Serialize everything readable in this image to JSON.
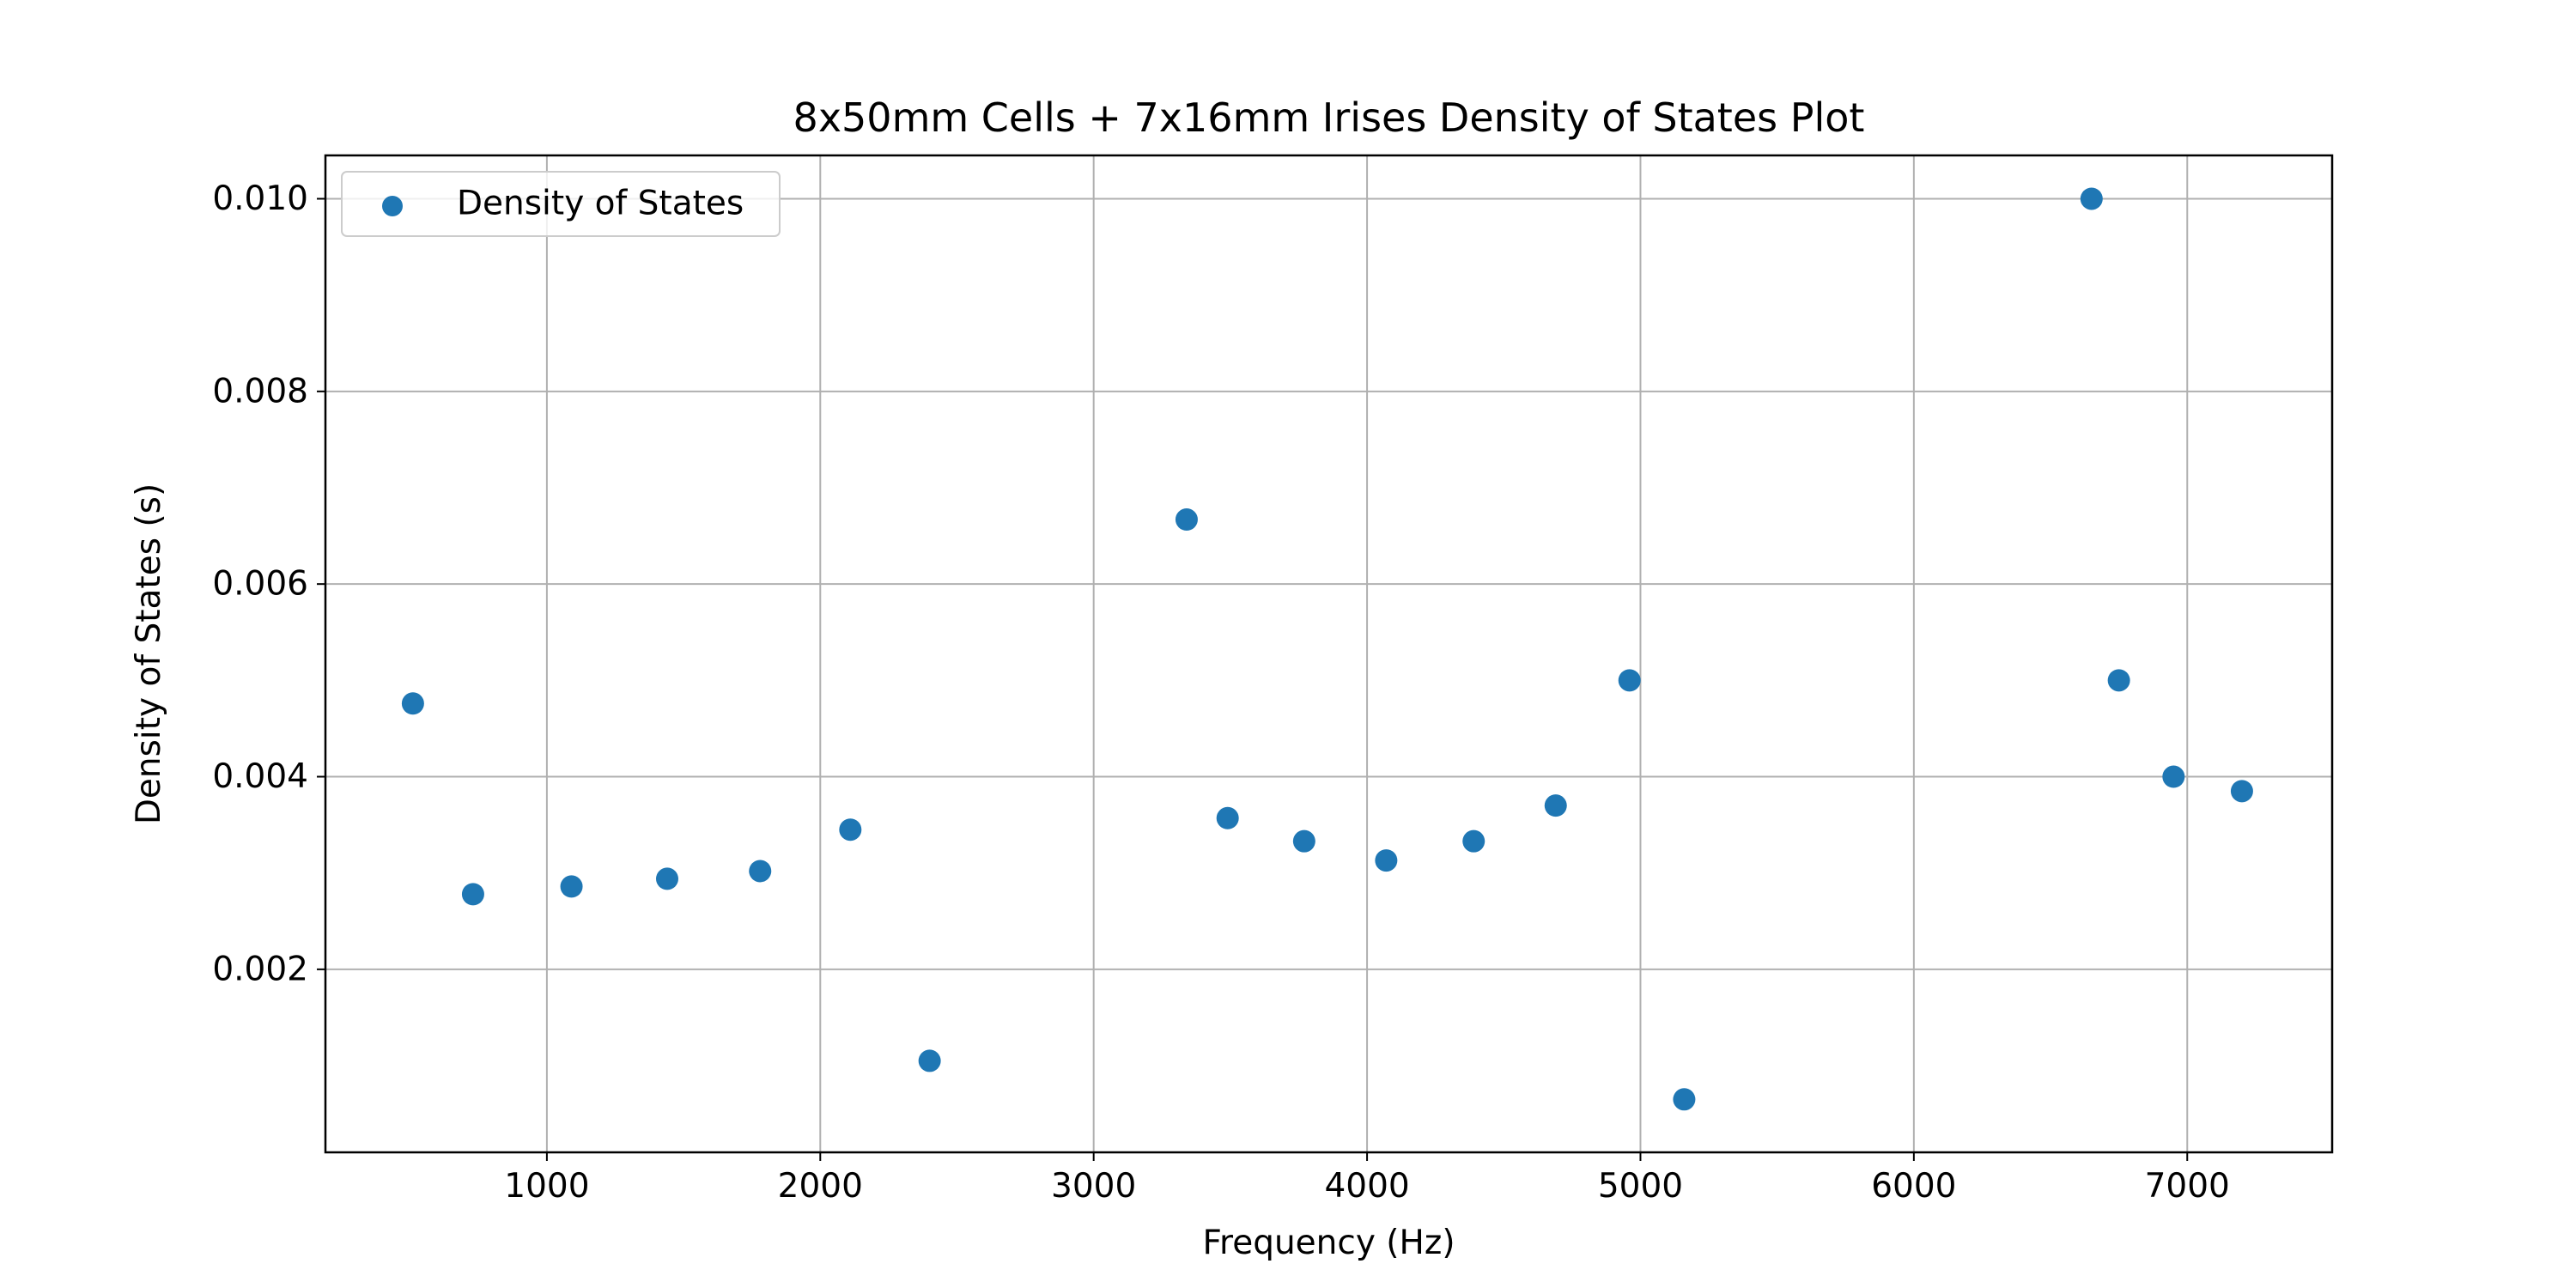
{
  "chart_data": {
    "type": "scatter",
    "title": "8x50mm Cells + 7x16mm Irises Density of States Plot",
    "xlabel": "Frequency (Hz)",
    "ylabel": "Density of States (s)",
    "xlim": [
      190,
      7530
    ],
    "ylim": [
      0.0001,
      0.01045
    ],
    "xticks": [
      1000,
      2000,
      3000,
      4000,
      5000,
      6000,
      7000
    ],
    "xtick_labels": [
      "1000",
      "2000",
      "3000",
      "4000",
      "5000",
      "6000",
      "7000"
    ],
    "yticks": [
      0.002,
      0.004,
      0.006,
      0.008,
      0.01
    ],
    "ytick_labels": [
      "0.002",
      "0.004",
      "0.006",
      "0.008",
      "0.010"
    ],
    "grid": true,
    "legend_position": "top-left",
    "series": [
      {
        "name": "Density of States",
        "color": "#1f77b4",
        "points": [
          {
            "x": 510,
            "y": 0.00476
          },
          {
            "x": 730,
            "y": 0.00278
          },
          {
            "x": 1090,
            "y": 0.00286
          },
          {
            "x": 1440,
            "y": 0.00294
          },
          {
            "x": 1780,
            "y": 0.00302
          },
          {
            "x": 2110,
            "y": 0.00345
          },
          {
            "x": 2400,
            "y": 0.00105
          },
          {
            "x": 3340,
            "y": 0.00667
          },
          {
            "x": 3490,
            "y": 0.00357
          },
          {
            "x": 3770,
            "y": 0.00333
          },
          {
            "x": 4070,
            "y": 0.00313
          },
          {
            "x": 4390,
            "y": 0.00333
          },
          {
            "x": 4690,
            "y": 0.0037
          },
          {
            "x": 4960,
            "y": 0.005
          },
          {
            "x": 5160,
            "y": 0.00065
          },
          {
            "x": 6650,
            "y": 0.01
          },
          {
            "x": 6750,
            "y": 0.005
          },
          {
            "x": 6950,
            "y": 0.004
          },
          {
            "x": 7200,
            "y": 0.00385
          }
        ]
      }
    ]
  }
}
